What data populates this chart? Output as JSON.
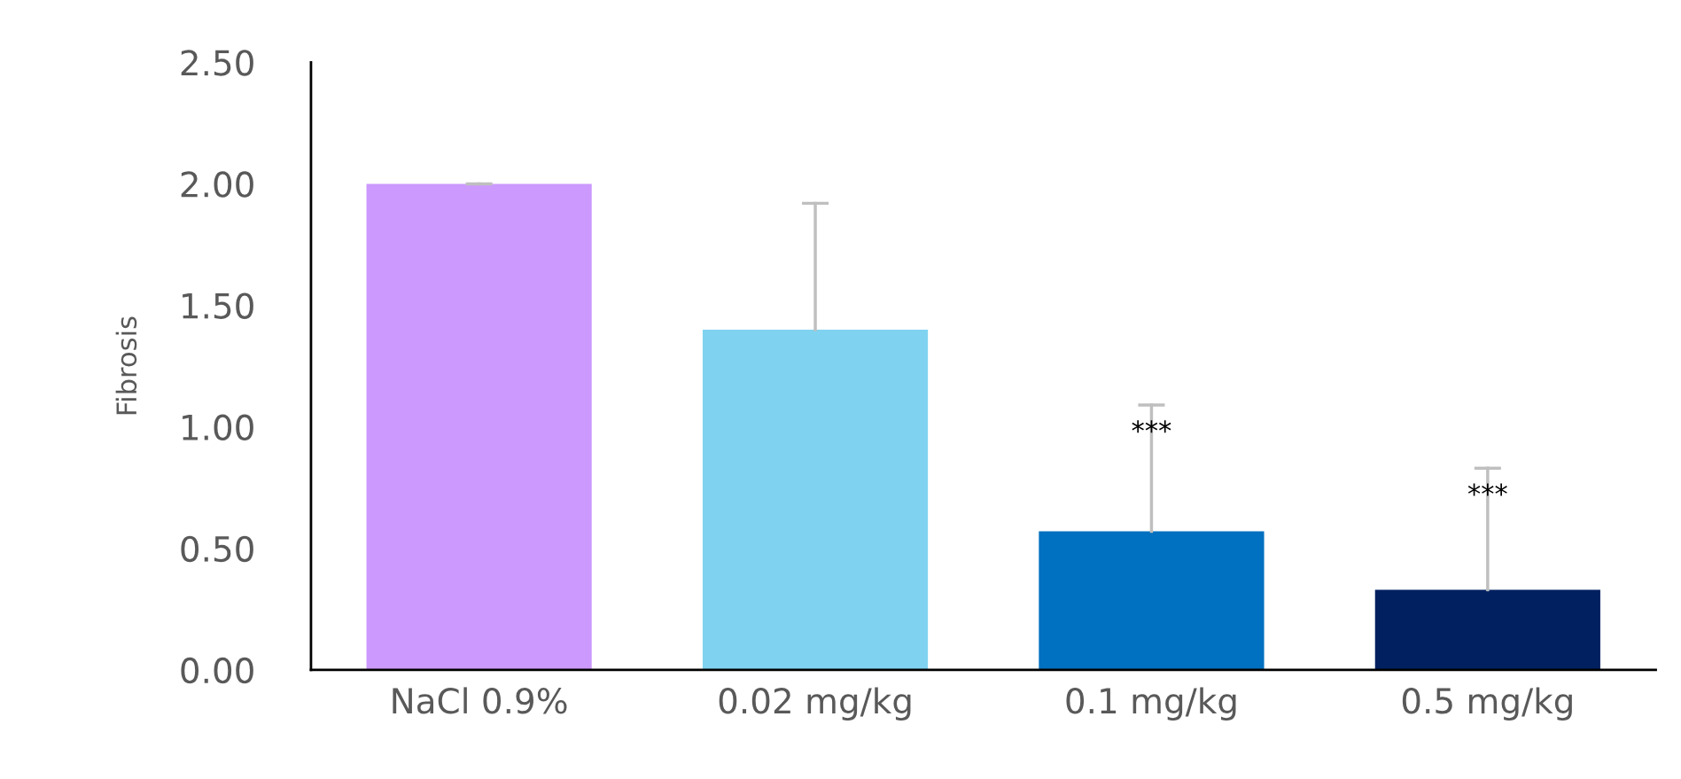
{
  "chart_data": {
    "type": "bar",
    "ylabel": "Fibrosis",
    "categories": [
      "NaCl 0.9%",
      "0.02 mg/kg",
      "0.1 mg/kg",
      "0.5 mg/kg"
    ],
    "values": [
      2.0,
      1.4,
      0.57,
      0.33
    ],
    "colors": [
      "#cc99ff",
      "#7fd3f0",
      "#0070c0",
      "#002060"
    ],
    "errors": [
      [
        2.0,
        2.0
      ],
      [
        1.4,
        1.92
      ],
      [
        0.57,
        1.09
      ],
      [
        0.33,
        0.83
      ]
    ],
    "ylim": [
      0,
      2.5
    ],
    "yticks": [
      {
        "value": 0,
        "label": "0.00"
      },
      {
        "value": 0.5,
        "label": "0.50"
      },
      {
        "value": 1,
        "label": "1.00"
      },
      {
        "value": 1.5,
        "label": "1.50"
      },
      {
        "value": 2,
        "label": "2.00"
      },
      {
        "value": 2.5,
        "label": "2.50"
      }
    ],
    "annotations": [
      {
        "text": "***",
        "x": "0.1 mg/kg",
        "y": 1.09
      },
      {
        "text": "***",
        "x": "0.5 mg/kg",
        "y": 0.83
      }
    ],
    "grid": false,
    "legend": false
  }
}
